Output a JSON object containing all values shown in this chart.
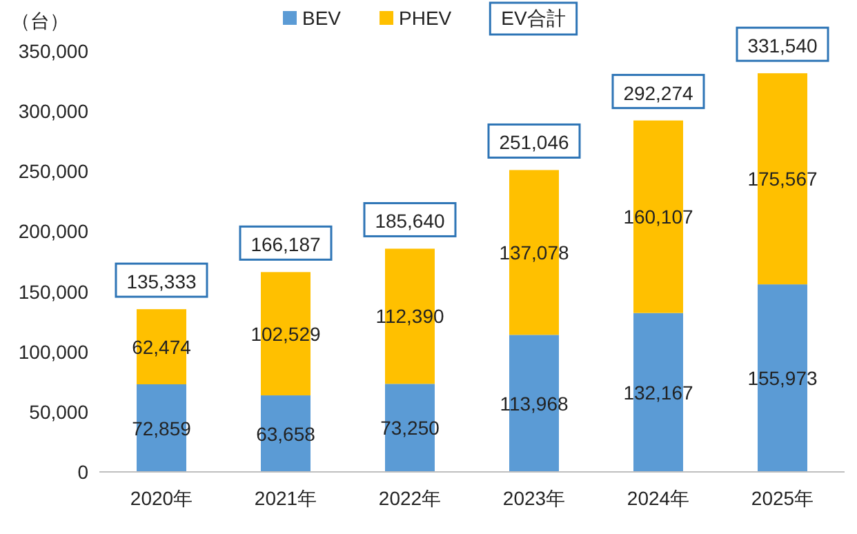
{
  "chart_data": {
    "type": "bar",
    "stacked": true,
    "ylabel": "（台）",
    "categories": [
      "2020年",
      "2021年",
      "2022年",
      "2023年",
      "2024年",
      "2025年"
    ],
    "series": [
      {
        "name": "BEV",
        "color": "#5b9bd5",
        "values": [
          72859,
          63658,
          73250,
          113968,
          132167,
          155973
        ],
        "value_labels": [
          "72,859",
          "63,658",
          "73,250",
          "113,968",
          "132,167",
          "155,973"
        ]
      },
      {
        "name": "PHEV",
        "color": "#ffc000",
        "values": [
          62474,
          102529,
          112390,
          137078,
          160107,
          175567
        ],
        "value_labels": [
          "62,474",
          "102,529",
          "112,390",
          "137,078",
          "160,107",
          "175,567"
        ]
      }
    ],
    "totals": [
      "135,333",
      "166,187",
      "185,640",
      "251,046",
      "292,274",
      "331,540"
    ],
    "annotations": [
      "EV合計"
    ],
    "ylim": [
      0,
      350000
    ],
    "yticks": [
      {
        "value": 0,
        "label": "0"
      },
      {
        "value": 50000,
        "label": "50,000"
      },
      {
        "value": 100000,
        "label": "100,000"
      },
      {
        "value": 150000,
        "label": "150,000"
      },
      {
        "value": 200000,
        "label": "200,000"
      },
      {
        "value": 250000,
        "label": "250,000"
      },
      {
        "value": 300000,
        "label": "300,000"
      },
      {
        "value": 350000,
        "label": "350,000"
      }
    ],
    "legend": "top"
  }
}
